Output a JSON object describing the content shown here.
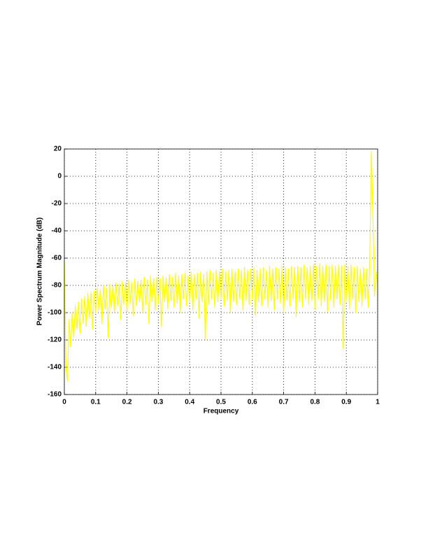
{
  "chart_data": {
    "type": "line",
    "xlabel": "Frequency",
    "ylabel": "Power Spectrum Magnitude (dB)",
    "xlim": [
      0,
      1
    ],
    "ylim": [
      -160,
      20
    ],
    "xticks": [
      0,
      0.1,
      0.2,
      0.3,
      0.4,
      0.5,
      0.6,
      0.7,
      0.8,
      0.9,
      1
    ],
    "yticks": [
      20,
      0,
      -20,
      -40,
      -60,
      -80,
      -100,
      -120,
      -140,
      -160
    ],
    "grid": true,
    "x": [
      0,
      0.005,
      0.01,
      0.015,
      0.02,
      0.025,
      0.03,
      0.035,
      0.04,
      0.045,
      0.05,
      0.055,
      0.06,
      0.065,
      0.07,
      0.075,
      0.08,
      0.085,
      0.09,
      0.095,
      0.1,
      0.105,
      0.11,
      0.115,
      0.12,
      0.125,
      0.13,
      0.135,
      0.14,
      0.145,
      0.15,
      0.155,
      0.16,
      0.165,
      0.17,
      0.175,
      0.18,
      0.185,
      0.19,
      0.195,
      0.2,
      0.205,
      0.21,
      0.215,
      0.22,
      0.225,
      0.23,
      0.235,
      0.24,
      0.245,
      0.25,
      0.255,
      0.26,
      0.265,
      0.27,
      0.275,
      0.28,
      0.285,
      0.29,
      0.295,
      0.3,
      0.305,
      0.31,
      0.315,
      0.32,
      0.325,
      0.33,
      0.335,
      0.34,
      0.345,
      0.35,
      0.355,
      0.36,
      0.365,
      0.37,
      0.375,
      0.38,
      0.385,
      0.39,
      0.395,
      0.4,
      0.405,
      0.41,
      0.415,
      0.42,
      0.425,
      0.43,
      0.435,
      0.44,
      0.445,
      0.45,
      0.455,
      0.46,
      0.465,
      0.47,
      0.475,
      0.48,
      0.485,
      0.49,
      0.495,
      0.5,
      0.505,
      0.51,
      0.515,
      0.52,
      0.525,
      0.53,
      0.535,
      0.54,
      0.545,
      0.55,
      0.555,
      0.56,
      0.565,
      0.57,
      0.575,
      0.58,
      0.585,
      0.59,
      0.595,
      0.6,
      0.605,
      0.61,
      0.615,
      0.62,
      0.625,
      0.63,
      0.635,
      0.64,
      0.645,
      0.65,
      0.655,
      0.66,
      0.665,
      0.67,
      0.675,
      0.68,
      0.685,
      0.69,
      0.695,
      0.7,
      0.705,
      0.71,
      0.715,
      0.72,
      0.725,
      0.73,
      0.735,
      0.74,
      0.745,
      0.75,
      0.755,
      0.76,
      0.765,
      0.77,
      0.775,
      0.78,
      0.785,
      0.79,
      0.795,
      0.8,
      0.805,
      0.81,
      0.815,
      0.82,
      0.825,
      0.83,
      0.835,
      0.84,
      0.845,
      0.85,
      0.855,
      0.86,
      0.865,
      0.87,
      0.875,
      0.88,
      0.885,
      0.89,
      0.895,
      0.9,
      0.905,
      0.91,
      0.915,
      0.92,
      0.925,
      0.93,
      0.935,
      0.94,
      0.945,
      0.95,
      0.955,
      0.96,
      0.965,
      0.97,
      0.975,
      0.98,
      0.985,
      0.99,
      0.995,
      1
    ],
    "series": [
      {
        "color": "#ffff00",
        "values": [
          -62,
          -140,
          -150,
          -105,
          -125,
          -100,
          -118,
          -95,
          -112,
          -92,
          -115,
          -90,
          -108,
          -88,
          -110,
          -86,
          -104,
          -85,
          -112,
          -84,
          -100,
          -82,
          -98,
          -83,
          -108,
          -80,
          -97,
          -82,
          -118,
          -79,
          -96,
          -80,
          -100,
          -78,
          -95,
          -79,
          -105,
          -77,
          -94,
          -78,
          -99,
          -76,
          -93,
          -78,
          -102,
          -75,
          -95,
          -77,
          -92,
          -76,
          -100,
          -74,
          -94,
          -76,
          -108,
          -73,
          -92,
          -75,
          -98,
          -74,
          -93,
          -75,
          -110,
          -73,
          -92,
          -74,
          -97,
          -72,
          -91,
          -74,
          -96,
          -71,
          -93,
          -73,
          -100,
          -72,
          -90,
          -71,
          -95,
          -73,
          -92,
          -70,
          -98,
          -72,
          -90,
          -71,
          -104,
          -70,
          -92,
          -72,
          -120,
          -70,
          -94,
          -69,
          -90,
          -71,
          -96,
          -69,
          -92,
          -70,
          -90,
          -68,
          -95,
          -70,
          -91,
          -69,
          -100,
          -68,
          -92,
          -70,
          -94,
          -68,
          -90,
          -69,
          -98,
          -67,
          -91,
          -69,
          -94,
          -68,
          -90,
          -67,
          -102,
          -69,
          -92,
          -68,
          -95,
          -67,
          -90,
          -69,
          -96,
          -66,
          -91,
          -68,
          -98,
          -67,
          -90,
          -68,
          -93,
          -66,
          -100,
          -67,
          -91,
          -68,
          -95,
          -66,
          -90,
          -67,
          -103,
          -66,
          -92,
          -67,
          -96,
          -65,
          -90,
          -67,
          -94,
          -66,
          -91,
          -65,
          -97,
          -66,
          -90,
          -64,
          -95,
          -66,
          -92,
          -65,
          -99,
          -66,
          -91,
          -65,
          -96,
          -66,
          -90,
          -65,
          -94,
          -66,
          -126,
          -65,
          -92,
          -66,
          -97,
          -65,
          -90,
          -67,
          -100,
          -66,
          -92,
          -68,
          -95,
          -67,
          -90,
          -68,
          -96,
          -60,
          18,
          -30,
          -88,
          -70,
          -80
        ]
      }
    ]
  }
}
